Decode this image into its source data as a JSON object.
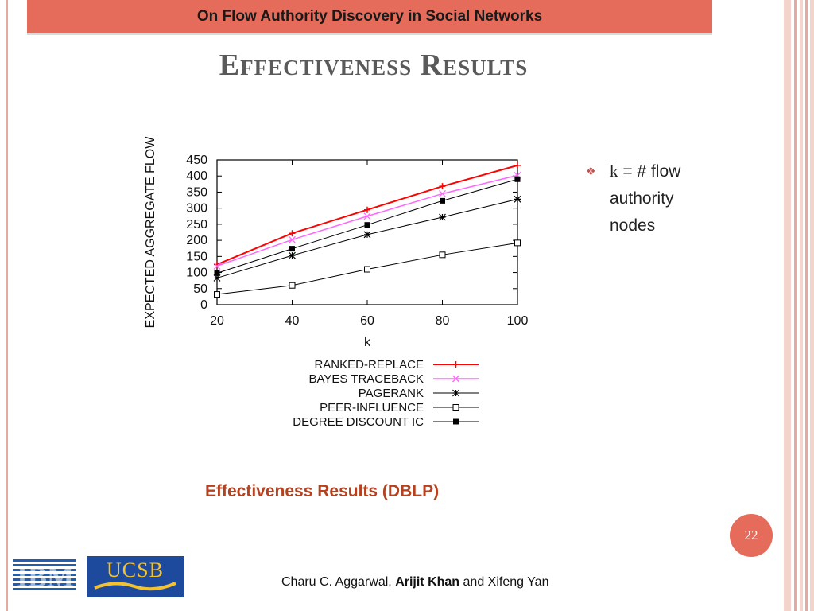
{
  "header": {
    "title": "On Flow Authority Discovery in Social Networks"
  },
  "slide_title": "Effectiveness Results",
  "bullet": {
    "text_k": "k",
    "text_rest": " = # flow authority nodes"
  },
  "caption": "Effectiveness Results (DBLP)",
  "page_number": "22",
  "footer": {
    "prefix": "Charu C. Aggarwal, ",
    "bold": "Arijit Khan",
    "suffix": " and Xifeng Yan"
  },
  "logos": {
    "left": "IBM",
    "right": "UCSB"
  },
  "colors": {
    "accent": "#e56b5a",
    "caption": "#b5411f",
    "ranked_replace": "#ff0000",
    "bayes_traceback": "#ff66ff",
    "black_series": "#000000"
  },
  "chart_data": {
    "type": "line",
    "xlabel": "k",
    "ylabel": "EXPECTED AGGREGATE FLOW",
    "x": [
      20,
      40,
      60,
      80,
      100
    ],
    "xlim": [
      20,
      100
    ],
    "ylim": [
      0,
      450
    ],
    "xticks": [
      "20",
      "40",
      "60",
      "80",
      "100"
    ],
    "yticks": [
      "0",
      "50",
      "100",
      "150",
      "200",
      "250",
      "300",
      "350",
      "400",
      "450"
    ],
    "legend_position": "below",
    "series": [
      {
        "name": "RANKED-REPLACE",
        "values": [
          125,
          222,
          295,
          368,
          433
        ],
        "color": "#ff0000",
        "marker": "plus",
        "width": 2
      },
      {
        "name": "BAYES TRACEBACK",
        "values": [
          120,
          202,
          275,
          345,
          402
        ],
        "color": "#ff66ff",
        "marker": "x",
        "width": 1.5
      },
      {
        "name": "PAGERANK",
        "values": [
          83,
          153,
          218,
          272,
          328
        ],
        "color": "#000000",
        "marker": "star",
        "width": 1
      },
      {
        "name": "PEER-INFLUENCE",
        "values": [
          32,
          60,
          110,
          155,
          192
        ],
        "color": "#000000",
        "marker": "open-square",
        "width": 1
      },
      {
        "name": "DEGREE DISCOUNT IC",
        "values": [
          98,
          174,
          248,
          323,
          390
        ],
        "color": "#000000",
        "marker": "filled-square",
        "width": 1
      }
    ]
  }
}
